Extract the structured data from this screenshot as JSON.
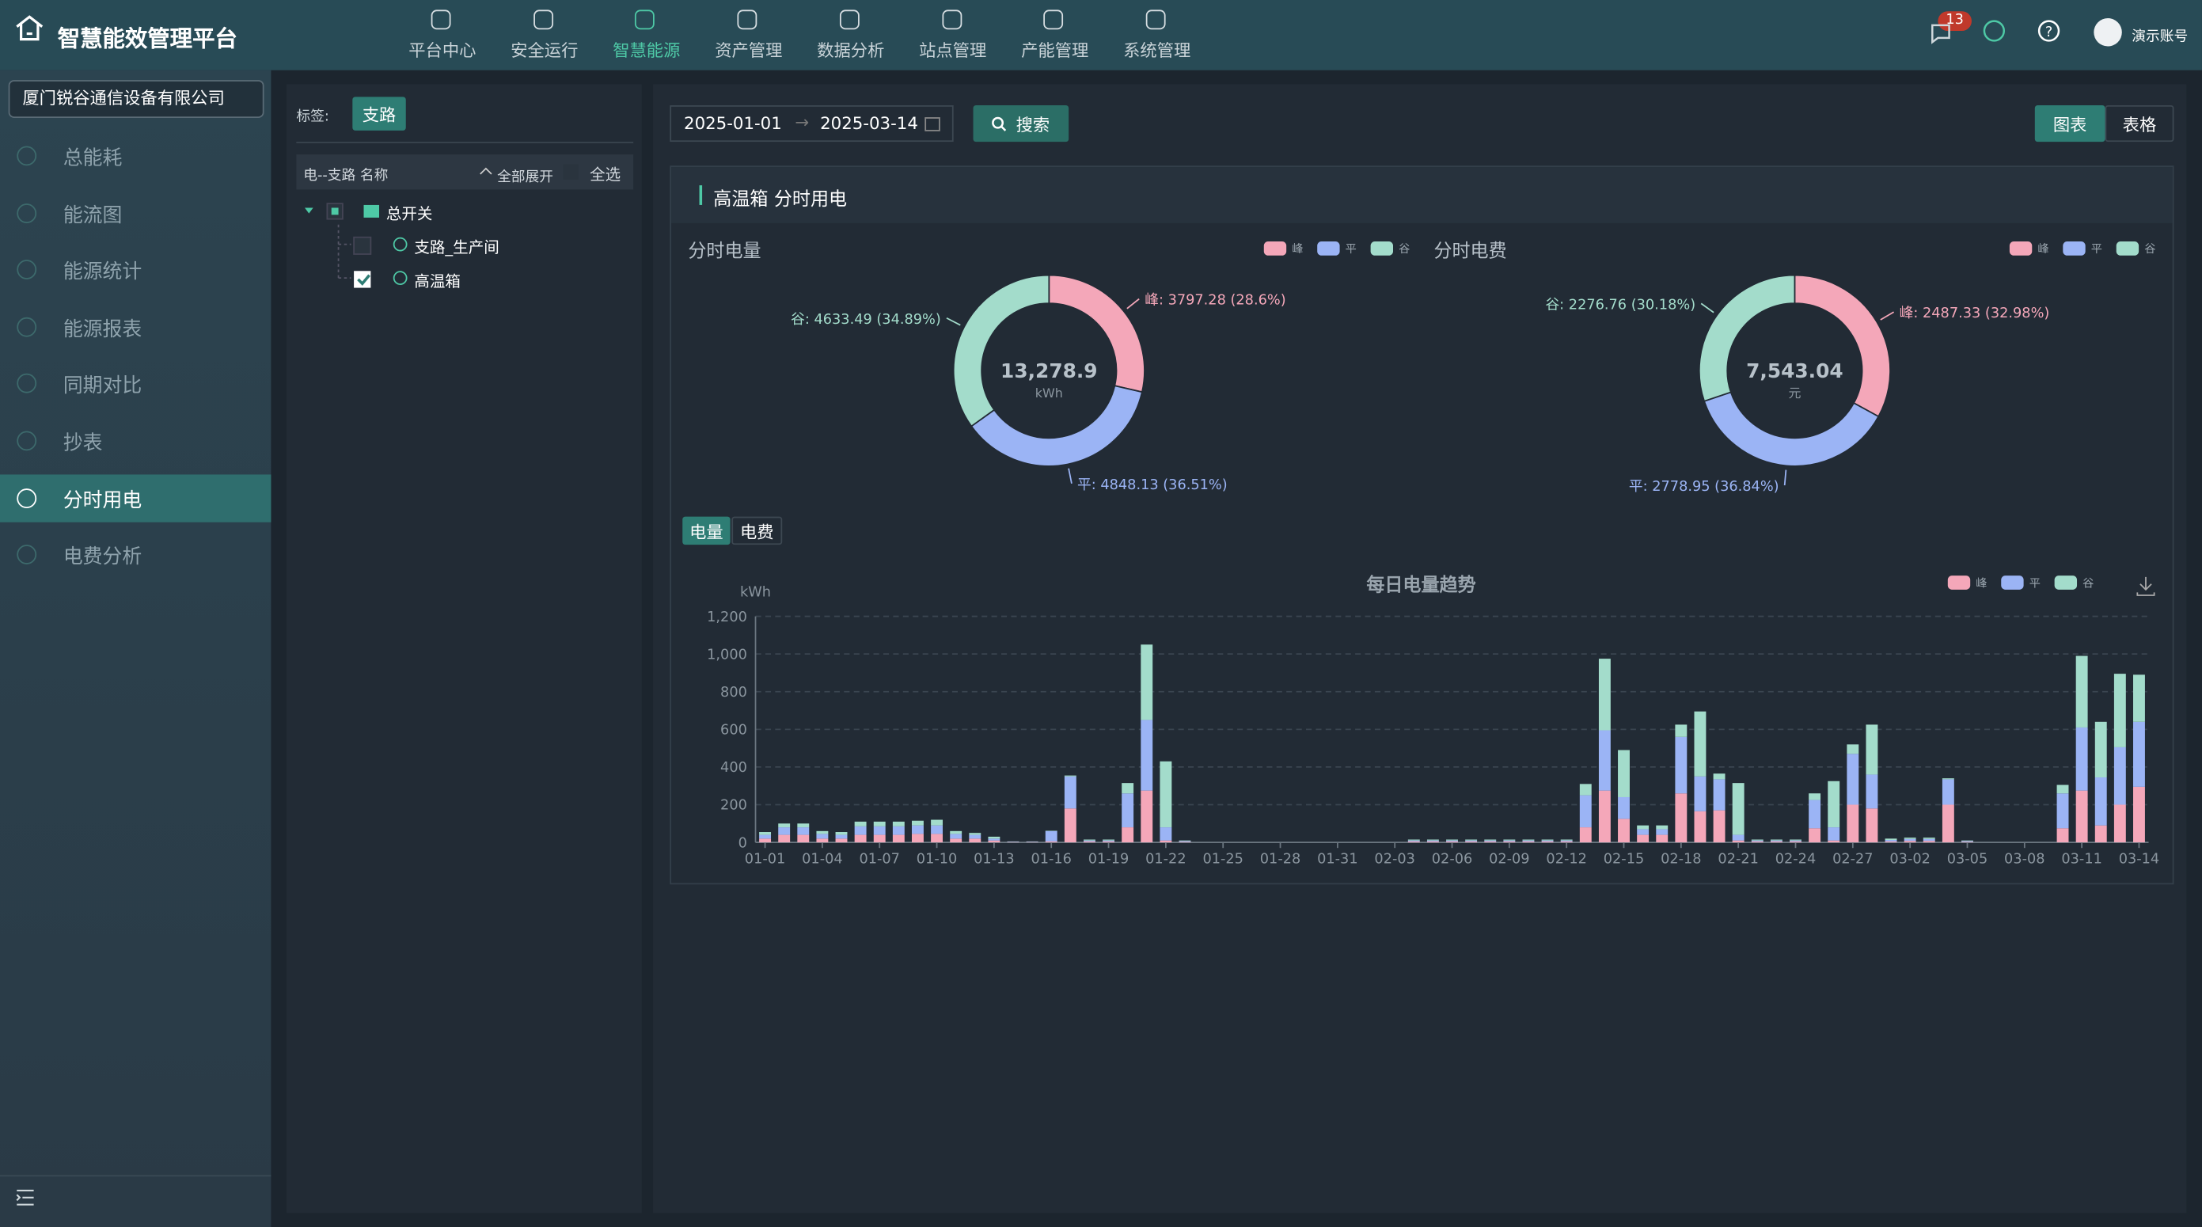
{
  "header": {
    "title": "智慧能效管理平台",
    "nav": [
      "平台中心",
      "安全运行",
      "智慧能源",
      "资产管理",
      "数据分析",
      "站点管理",
      "产能管理",
      "系统管理"
    ],
    "nav_active": 2,
    "badge": "13",
    "user": "演示账号"
  },
  "sidebar": {
    "company": "厦门锐谷通信设备有限公司",
    "menu": [
      "总能耗",
      "能流图",
      "能源统计",
      "能源报表",
      "同期对比",
      "抄表",
      "分时用电",
      "电费分析"
    ],
    "menu_active": 6
  },
  "tree": {
    "tag_label": "标签:",
    "tag": "支路",
    "column": "电--支路 名称",
    "expand": "全部展开",
    "select_all": "全选",
    "nodes": [
      "总开关",
      "支路_生产间",
      "高温箱"
    ]
  },
  "toolbar": {
    "start": "2025-01-01",
    "end": "2025-03-14",
    "search": "搜索",
    "views": [
      "图表",
      "表格"
    ]
  },
  "panel": {
    "title": "高温箱 分时用电",
    "tabs": [
      "电量",
      "电费"
    ]
  },
  "chart_data": [
    {
      "type": "pie",
      "title": "分时电量",
      "categories": [
        "峰",
        "平",
        "谷"
      ],
      "values": [
        3797.28,
        4848.13,
        4633.49
      ],
      "value_labels": [
        "峰: 3797.28 (28.6%)",
        "平: 4848.13 (36.51%)",
        "谷: 4633.49 (34.89%)"
      ],
      "colors": [
        "#f4a7b9",
        "#9bb4f5",
        "#a3dccb"
      ],
      "center_label": "13,278.9",
      "center_unit": "kWh"
    },
    {
      "type": "pie",
      "title": "分时电费",
      "categories": [
        "峰",
        "平",
        "谷"
      ],
      "values": [
        2487.33,
        2778.95,
        2276.76
      ],
      "value_labels": [
        "峰: 2487.33 (32.98%)",
        "平: 2778.95 (36.84%)",
        "谷: 2276.76 (30.18%)"
      ],
      "colors": [
        "#f4a7b9",
        "#9bb4f5",
        "#a3dccb"
      ],
      "center_label": "7,543.04",
      "center_unit": "元"
    },
    {
      "type": "bar",
      "stacked": true,
      "title": "每日电量趋势",
      "y_label": "kWh",
      "categories": [
        "01-01",
        null,
        null,
        "01-04",
        null,
        null,
        "01-07",
        null,
        null,
        "01-10",
        null,
        null,
        "01-13",
        null,
        null,
        "01-16",
        null,
        null,
        "01-19",
        null,
        null,
        "01-22",
        null,
        null,
        "01-25",
        null,
        null,
        "01-28",
        null,
        null,
        "01-31",
        null,
        null,
        "02-03",
        null,
        null,
        "02-06",
        null,
        null,
        "02-09",
        null,
        null,
        "02-12",
        null,
        null,
        "02-15",
        null,
        null,
        "02-18",
        null,
        null,
        "02-21",
        null,
        null,
        "02-24",
        null,
        null,
        "02-27",
        null,
        null,
        "03-02",
        null,
        null,
        "03-05",
        null,
        null,
        "03-08",
        null,
        null,
        "03-11",
        null,
        null,
        "03-14"
      ],
      "series": [
        {
          "name": "峰",
          "color": "#f4a7b9",
          "values": [
            20,
            40,
            40,
            20,
            20,
            40,
            40,
            40,
            45,
            45,
            20,
            20,
            10,
            2,
            2,
            5,
            180,
            5,
            5,
            80,
            275,
            10,
            3,
            0,
            0,
            0,
            0,
            0,
            0,
            0,
            0,
            0,
            0,
            0,
            5,
            5,
            5,
            5,
            5,
            5,
            5,
            5,
            5,
            80,
            275,
            125,
            40,
            40,
            260,
            165,
            170,
            10,
            5,
            5,
            5,
            75,
            10,
            200,
            180,
            5,
            8,
            8,
            200,
            3,
            0,
            0,
            0,
            0,
            75,
            275,
            90,
            200,
            295
          ]
        },
        {
          "name": "平",
          "color": "#9bb4f5",
          "values": [
            20,
            40,
            40,
            25,
            20,
            45,
            45,
            45,
            45,
            45,
            25,
            20,
            10,
            2,
            2,
            55,
            170,
            5,
            5,
            180,
            375,
            70,
            4,
            0,
            0,
            0,
            0,
            0,
            0,
            0,
            0,
            0,
            0,
            0,
            5,
            5,
            5,
            5,
            5,
            5,
            5,
            5,
            5,
            170,
            320,
            115,
            30,
            30,
            300,
            185,
            165,
            30,
            5,
            5,
            5,
            150,
            70,
            270,
            180,
            8,
            10,
            10,
            135,
            4,
            0,
            0,
            0,
            0,
            185,
            335,
            255,
            305,
            345
          ]
        },
        {
          "name": "谷",
          "color": "#a3dccb",
          "values": [
            15,
            20,
            20,
            15,
            15,
            25,
            25,
            25,
            25,
            30,
            15,
            10,
            10,
            1,
            1,
            2,
            5,
            5,
            5,
            55,
            400,
            350,
            3,
            0,
            0,
            0,
            0,
            0,
            0,
            0,
            0,
            0,
            0,
            0,
            5,
            5,
            5,
            5,
            5,
            5,
            5,
            5,
            5,
            60,
            380,
            250,
            20,
            20,
            65,
            345,
            30,
            275,
            5,
            5,
            5,
            35,
            245,
            50,
            265,
            7,
            7,
            7,
            5,
            3,
            0,
            0,
            0,
            0,
            45,
            380,
            295,
            390,
            250
          ]
        }
      ],
      "ylim": [
        0,
        1200
      ],
      "yticks": [
        0,
        200,
        400,
        600,
        800,
        {
          "value": 1000,
          "label": "1,000"
        },
        {
          "value": 1200,
          "label": "1,200"
        }
      ],
      "grid": true
    }
  ]
}
